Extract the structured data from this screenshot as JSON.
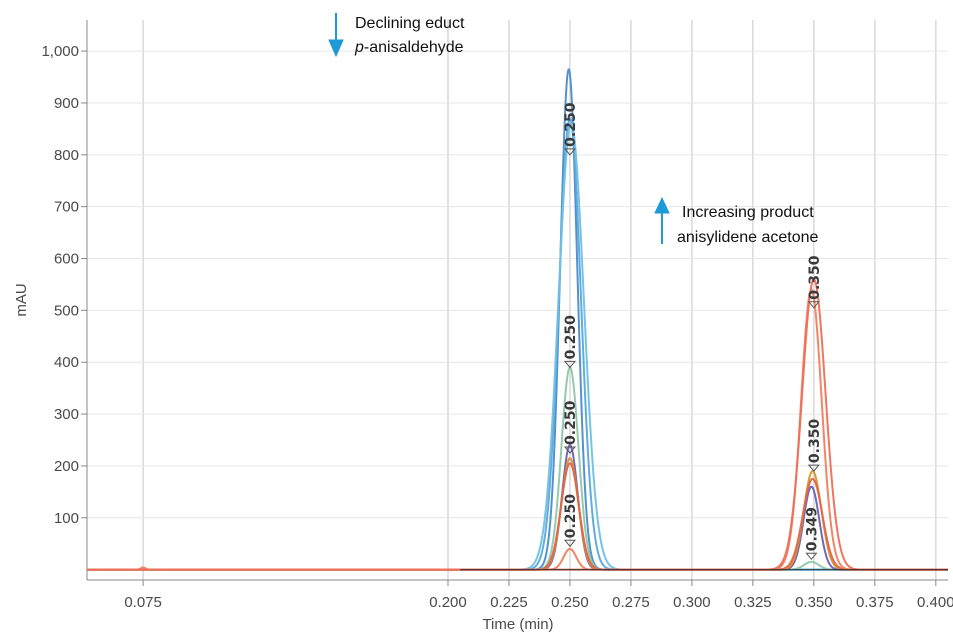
{
  "chart_data": {
    "type": "line",
    "xlabel": "Time (min)",
    "ylabel": "mAU",
    "xlim": [
      0.052,
      0.405
    ],
    "ylim": [
      -20,
      1060
    ],
    "grid": true,
    "x_ticks": [
      0.075,
      0.2,
      0.225,
      0.25,
      0.275,
      0.3,
      0.325,
      0.35,
      0.375,
      0.4
    ],
    "x_tick_labels": [
      "0.075",
      "0.200",
      "0.225",
      "0.250",
      "0.275",
      "0.300",
      "0.325",
      "0.350",
      "0.375",
      "0.400"
    ],
    "y_ticks": [
      100,
      200,
      300,
      400,
      500,
      600,
      700,
      800,
      900,
      1000
    ],
    "y_tick_labels": [
      "100",
      "200",
      "300",
      "400",
      "500",
      "600",
      "700",
      "800",
      "900",
      "1,000"
    ],
    "series": [
      {
        "color": "#4a8ccc",
        "peaks": [
          {
            "x": 0.2495,
            "height": 965,
            "width": 0.0035
          }
        ]
      },
      {
        "color": "#5ba7d8",
        "peaks": [
          {
            "x": 0.25,
            "height": 870,
            "width": 0.0045
          }
        ]
      },
      {
        "color": "#6ec1e6",
        "peaks": [
          {
            "x": 0.2505,
            "height": 860,
            "width": 0.0052
          }
        ]
      },
      {
        "color": "#8fc7a8",
        "peaks": [
          {
            "x": 0.25,
            "height": 390,
            "width": 0.0035
          },
          {
            "x": 0.349,
            "height": 15,
            "width": 0.003
          }
        ]
      },
      {
        "color": "#6b5fb5",
        "peaks": [
          {
            "x": 0.25,
            "height": 240,
            "width": 0.0032
          },
          {
            "x": 0.349,
            "height": 160,
            "width": 0.0032
          }
        ]
      },
      {
        "color": "#d8932b",
        "peaks": [
          {
            "x": 0.25,
            "height": 215,
            "width": 0.0034
          },
          {
            "x": 0.3495,
            "height": 190,
            "width": 0.0036
          }
        ]
      },
      {
        "color": "#e06548",
        "peaks": [
          {
            "x": 0.25,
            "height": 205,
            "width": 0.0036
          },
          {
            "x": 0.3495,
            "height": 175,
            "width": 0.004
          }
        ]
      },
      {
        "color": "#f07e5e",
        "peaks": [
          {
            "x": 0.075,
            "height": 4,
            "width": 0.001
          },
          {
            "x": 0.25,
            "height": 40,
            "width": 0.0026
          },
          {
            "x": 0.349,
            "height": 540,
            "width": 0.0042
          }
        ]
      },
      {
        "color": "#ee6f58",
        "peaks": [
          {
            "x": 0.35,
            "height": 560,
            "width": 0.0048
          }
        ]
      }
    ],
    "peak_labels": [
      {
        "text": "0.250",
        "x": 0.25,
        "y": 800
      },
      {
        "text": "0.250",
        "x": 0.25,
        "y": 390
      },
      {
        "text": "0.250",
        "x": 0.25,
        "y": 225
      },
      {
        "text": "0.250",
        "x": 0.25,
        "y": 45
      },
      {
        "text": "0.350",
        "x": 0.35,
        "y": 505
      },
      {
        "text": "0.350",
        "x": 0.35,
        "y": 190
      },
      {
        "text": "0.349",
        "x": 0.349,
        "y": 20
      }
    ],
    "annotations": [
      {
        "lines": [
          "Declining educt",
          "p-anisaldehyde"
        ],
        "italic_prefix": "p",
        "arrow": "down",
        "arrow_color": "#1e9ad6"
      },
      {
        "lines": [
          "Increasing product",
          "anisylidene acetone"
        ],
        "arrow": "up",
        "arrow_color": "#1e9ad6"
      }
    ]
  }
}
